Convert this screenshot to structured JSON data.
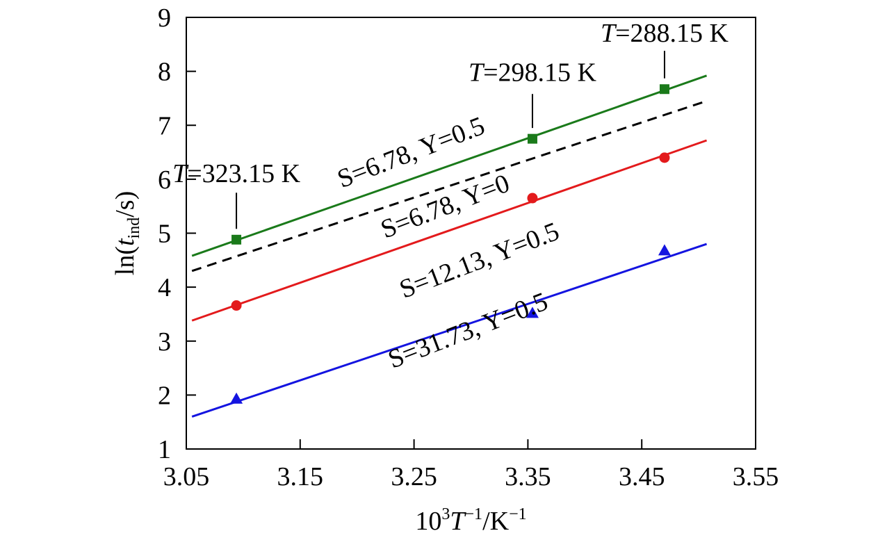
{
  "chart_data": {
    "type": "scatter",
    "xlabel": "10³T⁻¹/K⁻¹",
    "xlabel_parts": {
      "base": "10",
      "sup1": "3",
      "var": "T",
      "sup2": "−1",
      "unit": "/K",
      "sup3": "−1"
    },
    "ylabel": "ln(t_ind/s)",
    "ylabel_parts": {
      "pre": "ln(",
      "var": "t",
      "sub": "ind",
      "post": "/s)"
    },
    "xlim": [
      3.05,
      3.55
    ],
    "ylim": [
      1,
      9
    ],
    "x_ticks": [
      "3.05",
      "3.15",
      "3.25",
      "3.35",
      "3.45",
      "3.55"
    ],
    "y_ticks": [
      "1",
      "2",
      "3",
      "4",
      "5",
      "6",
      "7",
      "8",
      "9"
    ],
    "grid": false,
    "legend": "none",
    "series": [
      {
        "name": "S=6.78, Y=0.5",
        "color": "#1a7a1a",
        "marker": "square",
        "line_style": "solid",
        "x": [
          3.094,
          3.354,
          3.47
        ],
        "y": [
          4.88,
          6.75,
          7.67
        ],
        "fit": {
          "x": [
            3.055,
            3.507
          ],
          "y": [
            4.58,
            7.92
          ]
        },
        "label_pos": {
          "x": 3.25,
          "y": 6.35
        },
        "label_angle": -21
      },
      {
        "name": "S=6.78, Y=0",
        "color": "#000000",
        "marker": "none",
        "line_style": "dashed",
        "x": [],
        "y": [],
        "fit": {
          "x": [
            3.055,
            3.507
          ],
          "y": [
            4.3,
            7.45
          ]
        },
        "label_pos": {
          "x": 3.28,
          "y": 5.35
        },
        "label_angle": -21
      },
      {
        "name": "S=12.13, Y=0.5",
        "color": "#e31a1c",
        "marker": "circle",
        "line_style": "solid",
        "x": [
          3.094,
          3.354,
          3.47
        ],
        "y": [
          3.66,
          5.65,
          6.4
        ],
        "fit": {
          "x": [
            3.055,
            3.507
          ],
          "y": [
            3.38,
            6.72
          ]
        },
        "label_pos": {
          "x": 3.31,
          "y": 4.35
        },
        "label_angle": -21
      },
      {
        "name": "S=31.73, Y=0.5",
        "color": "#1414e0",
        "marker": "triangle",
        "line_style": "solid",
        "x": [
          3.094,
          3.354,
          3.47
        ],
        "y": [
          1.93,
          3.52,
          4.68
        ],
        "fit": {
          "x": [
            3.055,
            3.507
          ],
          "y": [
            1.6,
            4.8
          ]
        },
        "label_pos": {
          "x": 3.3,
          "y": 3.05
        },
        "label_angle": -21
      }
    ],
    "annotations": [
      {
        "text_var": "T",
        "text_value": "=323.15 K",
        "x": 3.094,
        "y_point": 4.88,
        "y_text": 5.95,
        "y_line_top": 5.75,
        "y_line_bottom": 5.08
      },
      {
        "text_var": "T",
        "text_value": "=298.15 K",
        "x": 3.354,
        "y_point": 6.75,
        "y_text": 7.82,
        "y_line_top": 7.58,
        "y_line_bottom": 6.95
      },
      {
        "text_var": "T",
        "text_value": "=288.15 K",
        "x": 3.47,
        "y_point": 7.67,
        "y_text": 8.55,
        "y_line_top": 8.38,
        "y_line_bottom": 7.87
      }
    ]
  }
}
